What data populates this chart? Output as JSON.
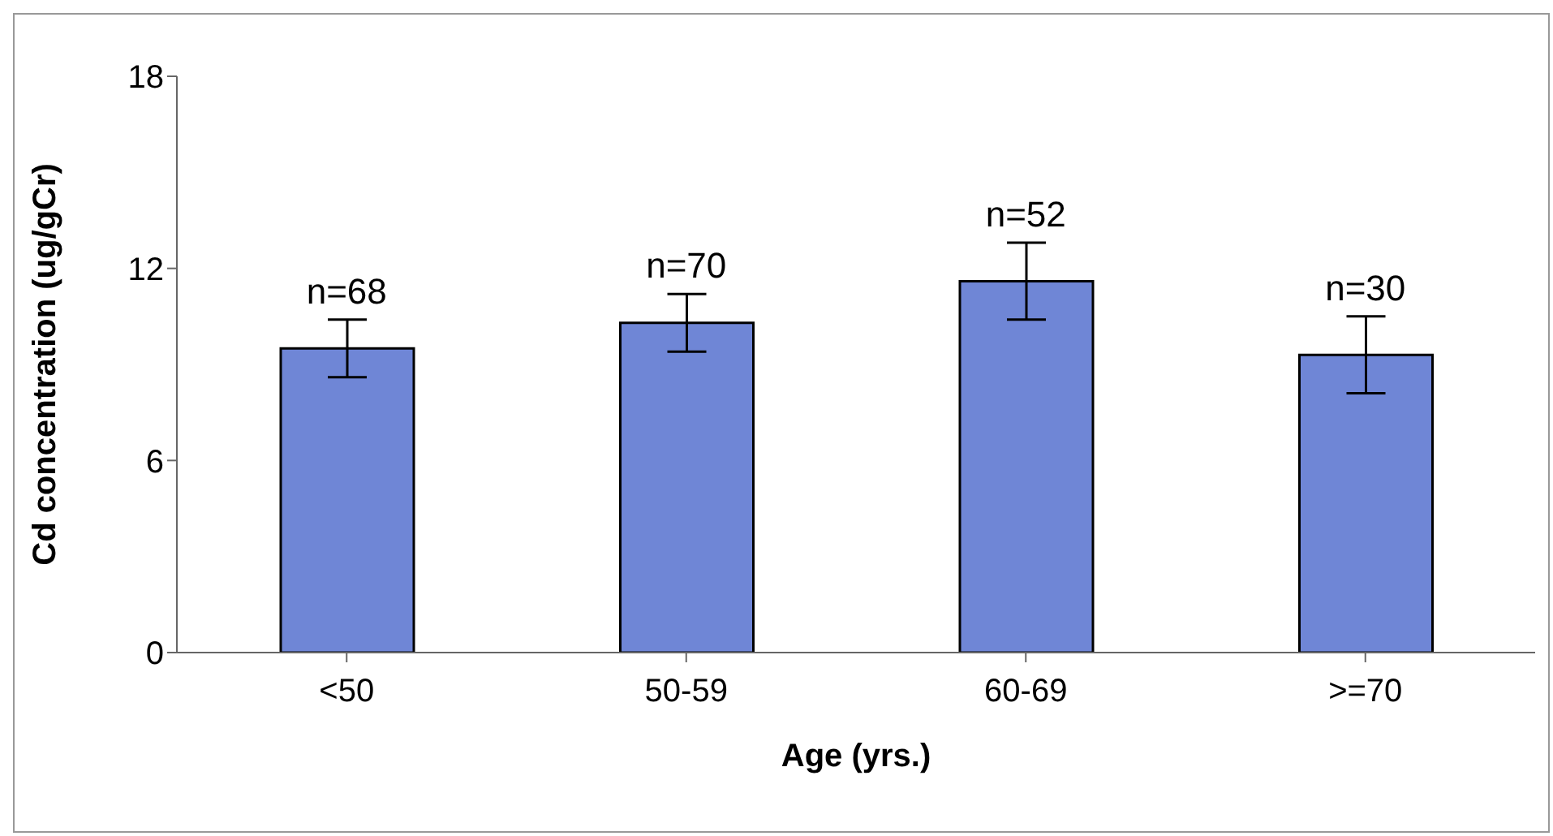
{
  "chart_data": {
    "type": "bar",
    "xlabel": "Age (yrs.)",
    "ylabel": "Cd concentration (ug/gCr)",
    "categories": [
      "<50",
      "50-59",
      "60-69",
      ">=70"
    ],
    "values": [
      9.5,
      10.3,
      11.6,
      9.3
    ],
    "errors": [
      0.9,
      0.9,
      1.2,
      1.2
    ],
    "color": "#6f86d6",
    "ylim": [
      0,
      18
    ],
    "yticks": [
      0,
      6,
      12,
      18
    ],
    "grid": false,
    "legend": false,
    "annotations": [
      {
        "text": "n=68",
        "x": "<50",
        "y": 10.4
      },
      {
        "text": "n=70",
        "x": "50-59",
        "y": 11.2
      },
      {
        "text": "n=52",
        "x": "60-69",
        "y": 12.8
      },
      {
        "text": "n=30",
        "x": ">=70",
        "y": 10.5
      }
    ]
  }
}
